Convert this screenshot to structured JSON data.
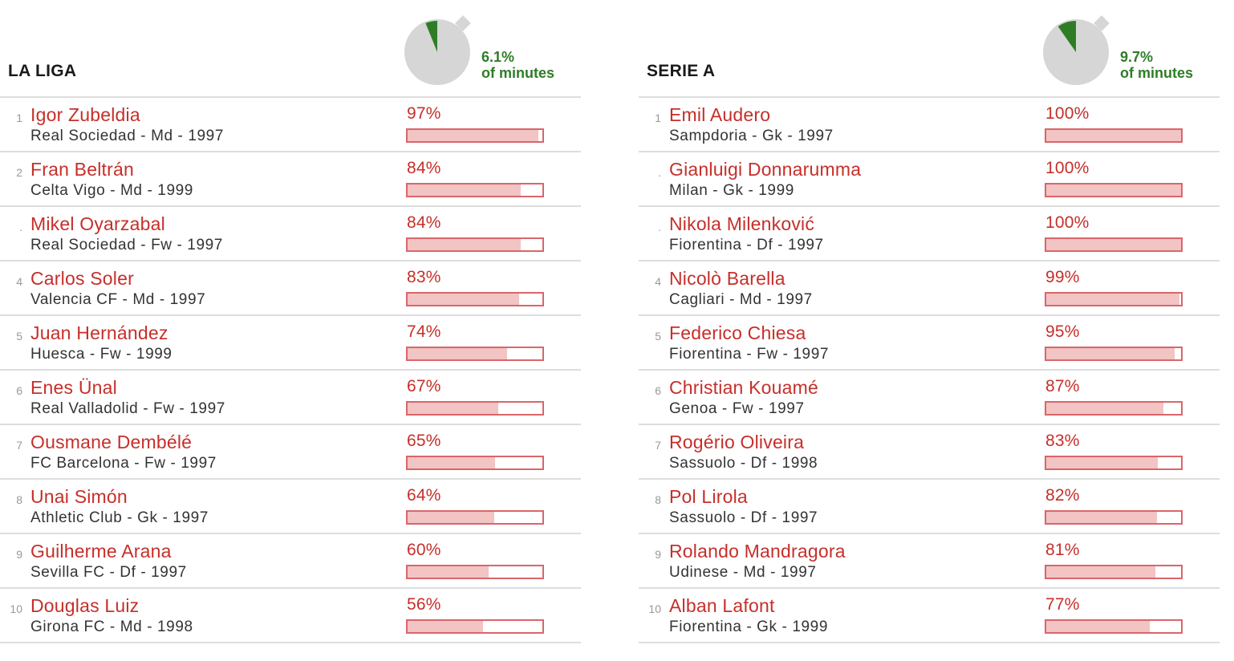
{
  "chart_data": [
    {
      "type": "table",
      "title": "LA LIGA",
      "share_value": "6.1%",
      "share_label": "of minutes",
      "share_fraction": 0.061,
      "colors": {
        "pie_bg": "#d6d6d6",
        "pie_slice": "#2e7d26",
        "name": "#c62f2a",
        "bar_fill": "#f2c4c4",
        "bar_border": "#d9666a"
      },
      "rows": [
        {
          "rank": "1",
          "name": "Igor Zubeldia",
          "info": "Real Sociedad - Md - 1997",
          "pct_label": "97%",
          "value": 97
        },
        {
          "rank": "2",
          "name": "Fran Beltrán",
          "info": "Celta Vigo - Md - 1999",
          "pct_label": "84%",
          "value": 84
        },
        {
          "rank": ".",
          "name": "Mikel Oyarzabal",
          "info": "Real Sociedad - Fw - 1997",
          "pct_label": "84%",
          "value": 84
        },
        {
          "rank": "4",
          "name": "Carlos Soler",
          "info": "Valencia CF - Md - 1997",
          "pct_label": "83%",
          "value": 83
        },
        {
          "rank": "5",
          "name": "Juan Hernández",
          "info": "Huesca - Fw - 1999",
          "pct_label": "74%",
          "value": 74
        },
        {
          "rank": "6",
          "name": "Enes Ünal",
          "info": "Real Valladolid - Fw - 1997",
          "pct_label": "67%",
          "value": 67
        },
        {
          "rank": "7",
          "name": "Ousmane Dembélé",
          "info": "FC Barcelona - Fw - 1997",
          "pct_label": "65%",
          "value": 65
        },
        {
          "rank": "8",
          "name": "Unai Simón",
          "info": "Athletic Club - Gk - 1997",
          "pct_label": "64%",
          "value": 64
        },
        {
          "rank": "9",
          "name": "Guilherme Arana",
          "info": "Sevilla FC - Df - 1997",
          "pct_label": "60%",
          "value": 60
        },
        {
          "rank": "10",
          "name": "Douglas Luiz",
          "info": "Girona FC - Md - 1998",
          "pct_label": "56%",
          "value": 56
        }
      ]
    },
    {
      "type": "table",
      "title": "SERIE A",
      "share_value": "9.7%",
      "share_label": "of minutes",
      "share_fraction": 0.097,
      "colors": {
        "pie_bg": "#d6d6d6",
        "pie_slice": "#2e7d26",
        "name": "#c62f2a",
        "bar_fill": "#f2c4c4",
        "bar_border": "#d9666a"
      },
      "rows": [
        {
          "rank": "1",
          "name": "Emil Audero",
          "info": "Sampdoria - Gk - 1997",
          "pct_label": "100%",
          "value": 100
        },
        {
          "rank": ".",
          "name": "Gianluigi Donnarumma",
          "info": "Milan - Gk - 1999",
          "pct_label": "100%",
          "value": 100
        },
        {
          "rank": ".",
          "name": "Nikola Milenković",
          "info": "Fiorentina - Df - 1997",
          "pct_label": "100%",
          "value": 100
        },
        {
          "rank": "4",
          "name": "Nicolò Barella",
          "info": "Cagliari - Md - 1997",
          "pct_label": "99%",
          "value": 99
        },
        {
          "rank": "5",
          "name": "Federico Chiesa",
          "info": "Fiorentina - Fw - 1997",
          "pct_label": "95%",
          "value": 95
        },
        {
          "rank": "6",
          "name": "Christian Kouamé",
          "info": "Genoa - Fw - 1997",
          "pct_label": "87%",
          "value": 87
        },
        {
          "rank": "7",
          "name": "Rogério Oliveira",
          "info": "Sassuolo - Df - 1998",
          "pct_label": "83%",
          "value": 83
        },
        {
          "rank": "8",
          "name": "Pol Lirola",
          "info": "Sassuolo - Df - 1997",
          "pct_label": "82%",
          "value": 82
        },
        {
          "rank": "9",
          "name": "Rolando Mandragora",
          "info": "Udinese - Md - 1997",
          "pct_label": "81%",
          "value": 81
        },
        {
          "rank": "10",
          "name": "Alban Lafont",
          "info": "Fiorentina - Gk - 1999",
          "pct_label": "77%",
          "value": 77
        }
      ]
    }
  ]
}
